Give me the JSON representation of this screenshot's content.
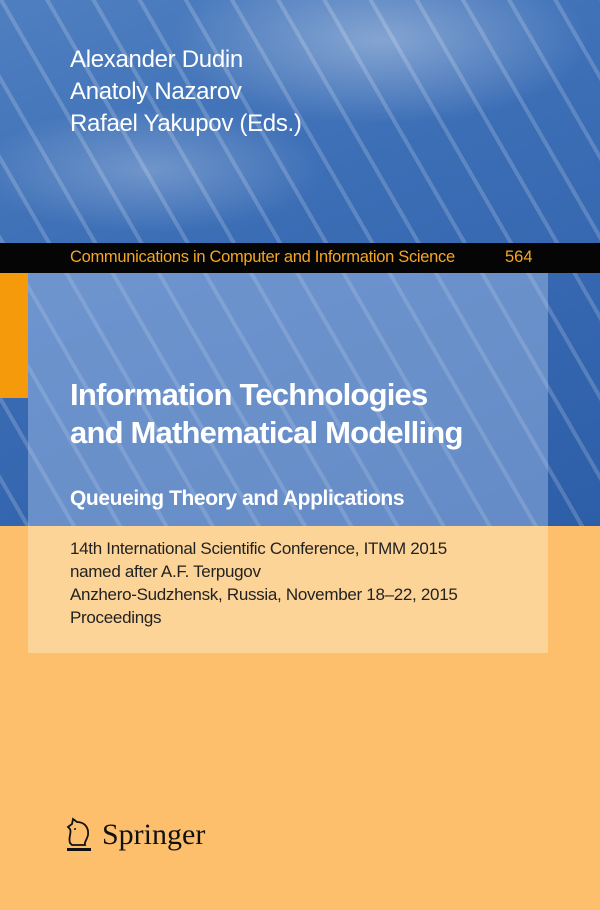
{
  "editors": [
    "Alexander Dudin",
    "Anatoly Nazarov",
    "Rafael Yakupov (Eds.)"
  ],
  "series": {
    "name": "Communications in Computer and Information Science",
    "number": "564"
  },
  "title": {
    "line1": "Information Technologies",
    "line2": "and Mathematical Modelling",
    "subtitle": "Queueing Theory and Applications"
  },
  "info": [
    "14th International Scientific Conference, ITMM 2015",
    "named after A.F. Terpugov",
    "Anzhero-Sudzhensk, Russia, November 18–22, 2015",
    "Proceedings"
  ],
  "publisher": {
    "name": "Springer",
    "logo_icon": "knight-horse-icon"
  },
  "colors": {
    "blue": "#3c6eb6",
    "orange": "#fdbf6c",
    "series_text": "#f6a623",
    "accent_strip": "#f59a0a"
  }
}
